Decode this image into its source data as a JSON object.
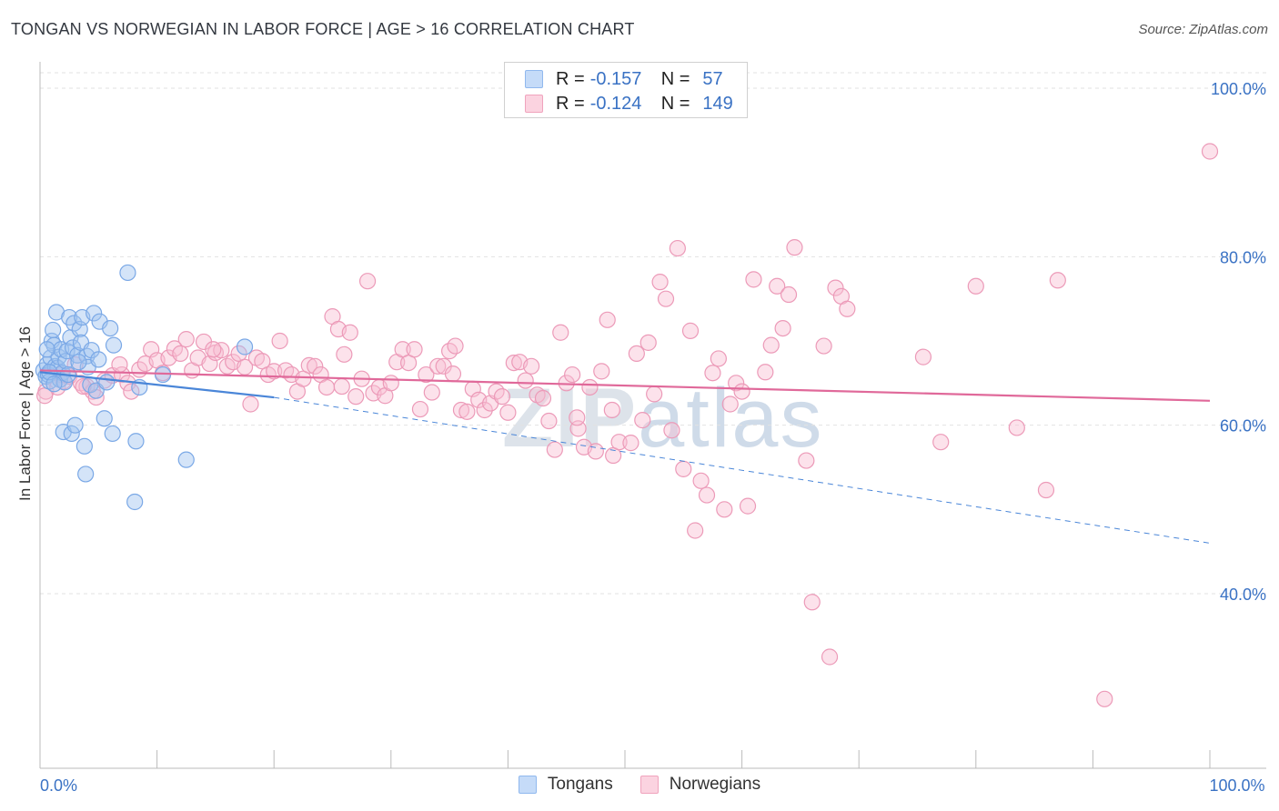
{
  "title": "TONGAN VS NORWEGIAN IN LABOR FORCE | AGE > 16 CORRELATION CHART",
  "source": "Source: ZipAtlas.com",
  "watermark": {
    "zip": "ZIP",
    "atlas": "atlas"
  },
  "legend": {
    "rows": [
      {
        "r_label": "R = ",
        "r_value": "-0.157",
        "n_label": "N = ",
        "n_value": "57",
        "color": "#90b8ee",
        "fill": "#c5dbf8"
      },
      {
        "r_label": "R = ",
        "r_value": "-0.124",
        "n_label": "N = ",
        "n_value": "149",
        "color": "#f0a3bd",
        "fill": "#fbd3e0"
      }
    ]
  },
  "bottom_legend": [
    {
      "label": "Tongans",
      "color": "#90b8ee",
      "fill": "#c5dbf8"
    },
    {
      "label": "Norwegians",
      "color": "#f0a3bd",
      "fill": "#fbd3e0"
    }
  ],
  "chart_data": {
    "type": "scatter",
    "title": "TONGAN VS NORWEGIAN IN LABOR FORCE | AGE > 16 CORRELATION CHART",
    "xlabel": "",
    "ylabel": "In Labor Force | Age > 16",
    "xlim": [
      0,
      100
    ],
    "ylim": [
      20,
      105
    ],
    "x_tick_labels": [
      {
        "value": 0,
        "label": "0.0%"
      },
      {
        "value": 100,
        "label": "100.0%"
      }
    ],
    "y_tick_labels": [
      {
        "value": 100,
        "label": "100.0%"
      },
      {
        "value": 80,
        "label": "80.0%"
      },
      {
        "value": 60,
        "label": "60.0%"
      },
      {
        "value": 40,
        "label": "40.0%"
      }
    ],
    "grid": true,
    "series": [
      {
        "name": "Tongans",
        "color": "#4a86d8",
        "points": [
          [
            0.3,
            66.5
          ],
          [
            0.5,
            65.8
          ],
          [
            0.6,
            67.2
          ],
          [
            0.7,
            66.0
          ],
          [
            0.8,
            65.2
          ],
          [
            0.9,
            68.0
          ],
          [
            1.0,
            70.0
          ],
          [
            1.1,
            71.3
          ],
          [
            1.2,
            69.5
          ],
          [
            1.3,
            67.0
          ],
          [
            1.4,
            73.4
          ],
          [
            1.5,
            66.8
          ],
          [
            1.6,
            68.1
          ],
          [
            1.7,
            65.4
          ],
          [
            1.8,
            69.0
          ],
          [
            1.9,
            66.2
          ],
          [
            2.0,
            59.2
          ],
          [
            2.1,
            65.1
          ],
          [
            2.2,
            67.6
          ],
          [
            2.3,
            68.8
          ],
          [
            2.5,
            72.8
          ],
          [
            2.6,
            70.4
          ],
          [
            2.7,
            59.0
          ],
          [
            2.8,
            69.2
          ],
          [
            2.9,
            72.1
          ],
          [
            3.0,
            60.0
          ],
          [
            3.2,
            68.3
          ],
          [
            3.4,
            71.4
          ],
          [
            3.5,
            69.8
          ],
          [
            3.6,
            72.8
          ],
          [
            3.8,
            57.5
          ],
          [
            3.9,
            54.2
          ],
          [
            4.0,
            68.2
          ],
          [
            4.1,
            66.9
          ],
          [
            4.3,
            64.8
          ],
          [
            4.4,
            68.9
          ],
          [
            4.6,
            73.3
          ],
          [
            4.8,
            64.1
          ],
          [
            5.0,
            67.8
          ],
          [
            5.1,
            72.3
          ],
          [
            5.5,
            60.8
          ],
          [
            5.7,
            65.1
          ],
          [
            6.0,
            71.5
          ],
          [
            6.2,
            59.0
          ],
          [
            6.3,
            69.5
          ],
          [
            7.5,
            78.1
          ],
          [
            8.2,
            58.1
          ],
          [
            8.1,
            50.9
          ],
          [
            8.5,
            64.5
          ],
          [
            10.5,
            66.0
          ],
          [
            12.5,
            55.9
          ],
          [
            17.5,
            69.3
          ],
          [
            0.8,
            66.3
          ],
          [
            1.2,
            64.9
          ],
          [
            2.4,
            66.0
          ],
          [
            3.3,
            67.5
          ],
          [
            0.6,
            69.0
          ]
        ],
        "trend": {
          "x0": 0,
          "y0": 66.3,
          "x1": 20,
          "y1": 63.3,
          "dash_x1": 100,
          "dash_y1": 46.0
        }
      },
      {
        "name": "Norwegians",
        "color": "#e0699a",
        "points": [
          [
            0.5,
            64.0
          ],
          [
            1.5,
            64.5
          ],
          [
            1.8,
            66.0
          ],
          [
            2.0,
            65.2
          ],
          [
            2.5,
            65.8
          ],
          [
            3.0,
            67.2
          ],
          [
            3.5,
            65.0
          ],
          [
            4.0,
            64.6
          ],
          [
            4.5,
            64.0
          ],
          [
            4.8,
            63.3
          ],
          [
            5.5,
            65.3
          ],
          [
            6.2,
            65.9
          ],
          [
            7.0,
            66.0
          ],
          [
            7.5,
            65.0
          ],
          [
            7.8,
            64.0
          ],
          [
            8.5,
            66.6
          ],
          [
            9.0,
            67.3
          ],
          [
            9.5,
            69.0
          ],
          [
            10.0,
            67.7
          ],
          [
            10.5,
            66.2
          ],
          [
            11.0,
            68.0
          ],
          [
            11.5,
            69.1
          ],
          [
            12.0,
            68.5
          ],
          [
            12.5,
            70.2
          ],
          [
            13.0,
            66.5
          ],
          [
            13.5,
            68.0
          ],
          [
            14.0,
            69.9
          ],
          [
            14.5,
            67.3
          ],
          [
            15.0,
            68.6
          ],
          [
            15.5,
            68.9
          ],
          [
            16.0,
            67.0
          ],
          [
            16.5,
            67.5
          ],
          [
            17.0,
            68.5
          ],
          [
            17.5,
            66.9
          ],
          [
            18.0,
            62.5
          ],
          [
            18.5,
            68.0
          ],
          [
            19.0,
            67.6
          ],
          [
            19.5,
            66.0
          ],
          [
            20.0,
            66.4
          ],
          [
            20.5,
            70.0
          ],
          [
            21.0,
            66.5
          ],
          [
            21.5,
            66.0
          ],
          [
            22.0,
            64.0
          ],
          [
            22.5,
            65.5
          ],
          [
            23.0,
            67.1
          ],
          [
            23.5,
            67.0
          ],
          [
            24.0,
            66.0
          ],
          [
            24.5,
            64.5
          ],
          [
            25.0,
            72.9
          ],
          [
            25.5,
            71.4
          ],
          [
            26.0,
            68.4
          ],
          [
            26.5,
            71.0
          ],
          [
            27.0,
            63.4
          ],
          [
            27.5,
            65.5
          ],
          [
            28.0,
            77.1
          ],
          [
            28.5,
            63.8
          ],
          [
            29.0,
            64.5
          ],
          [
            29.5,
            63.5
          ],
          [
            30.0,
            65.0
          ],
          [
            30.5,
            67.5
          ],
          [
            31.0,
            69.0
          ],
          [
            31.5,
            67.4
          ],
          [
            32.0,
            69.0
          ],
          [
            32.5,
            61.9
          ],
          [
            33.0,
            66.0
          ],
          [
            33.5,
            63.9
          ],
          [
            34.0,
            67.0
          ],
          [
            34.5,
            67.0
          ],
          [
            35.0,
            68.8
          ],
          [
            35.5,
            69.4
          ],
          [
            36.0,
            61.8
          ],
          [
            36.5,
            61.6
          ],
          [
            37.0,
            64.3
          ],
          [
            37.5,
            63.0
          ],
          [
            38.0,
            61.8
          ],
          [
            38.5,
            62.6
          ],
          [
            39.0,
            64.0
          ],
          [
            39.5,
            63.4
          ],
          [
            40.0,
            61.5
          ],
          [
            40.5,
            67.4
          ],
          [
            41.0,
            67.5
          ],
          [
            41.5,
            65.3
          ],
          [
            42.0,
            67.0
          ],
          [
            42.5,
            63.6
          ],
          [
            43.0,
            63.2
          ],
          [
            43.5,
            60.5
          ],
          [
            44.0,
            57.1
          ],
          [
            44.5,
            71.0
          ],
          [
            45.0,
            65.0
          ],
          [
            45.5,
            66.0
          ],
          [
            46.0,
            59.6
          ],
          [
            46.5,
            57.4
          ],
          [
            47.0,
            64.5
          ],
          [
            47.5,
            56.9
          ],
          [
            48.0,
            66.4
          ],
          [
            48.5,
            72.5
          ],
          [
            49.0,
            56.4
          ],
          [
            49.5,
            58.0
          ],
          [
            50.5,
            57.9
          ],
          [
            51.0,
            68.5
          ],
          [
            51.5,
            60.6
          ],
          [
            52.0,
            69.8
          ],
          [
            52.5,
            63.7
          ],
          [
            53.0,
            77.0
          ],
          [
            53.5,
            75.0
          ],
          [
            54.0,
            59.4
          ],
          [
            54.5,
            81.0
          ],
          [
            55.0,
            54.8
          ],
          [
            56.5,
            53.4
          ],
          [
            57.0,
            51.7
          ],
          [
            57.5,
            66.2
          ],
          [
            58.0,
            67.9
          ],
          [
            58.5,
            50.0
          ],
          [
            59.5,
            65.0
          ],
          [
            60.5,
            50.4
          ],
          [
            61.0,
            77.3
          ],
          [
            62.0,
            66.3
          ],
          [
            62.5,
            69.5
          ],
          [
            63.0,
            76.5
          ],
          [
            63.5,
            71.5
          ],
          [
            64.0,
            75.5
          ],
          [
            64.5,
            81.1
          ],
          [
            65.5,
            55.8
          ],
          [
            66.0,
            39.0
          ],
          [
            67.0,
            69.4
          ],
          [
            67.5,
            32.5
          ],
          [
            68.0,
            76.3
          ],
          [
            68.5,
            75.3
          ],
          [
            69.0,
            73.8
          ],
          [
            75.5,
            68.1
          ],
          [
            77.0,
            58.0
          ],
          [
            80.0,
            76.5
          ],
          [
            83.5,
            59.7
          ],
          [
            86.0,
            52.3
          ],
          [
            87.0,
            77.2
          ],
          [
            91.0,
            27.5
          ],
          [
            100.0,
            92.5
          ],
          [
            3.7,
            64.6
          ],
          [
            6.8,
            67.2
          ],
          [
            14.8,
            69.0
          ],
          [
            25.8,
            64.6
          ],
          [
            35.3,
            66.1
          ],
          [
            45.9,
            60.9
          ],
          [
            55.6,
            71.2
          ],
          [
            0.4,
            63.5
          ],
          [
            48.9,
            61.8
          ],
          [
            60.0,
            64.0
          ],
          [
            56.0,
            47.5
          ],
          [
            59.0,
            62.5
          ]
        ],
        "trend": {
          "x0": 0,
          "y0": 66.5,
          "x1": 100,
          "y1": 62.9
        }
      }
    ]
  }
}
